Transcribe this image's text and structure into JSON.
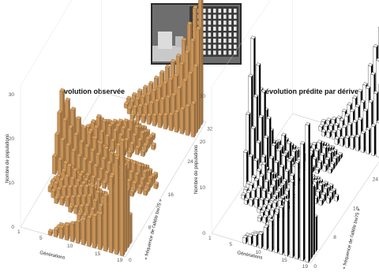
{
  "photo": {
    "description_icon": "laboratory-bottle-rack-photo"
  },
  "chart_data": [
    {
      "type": "bar3d",
      "title": "évolution observée",
      "ylabel": "Nombre de populations",
      "xlabel": "Générations",
      "zlabel": "« fréquence de l'allèle bw75 »",
      "color": "#d9a060",
      "y_ticks": [
        0,
        10,
        20,
        30
      ],
      "gen_ticks": [
        1,
        5,
        10,
        15,
        19
      ],
      "freq_ticks": [
        0,
        8,
        16,
        24,
        32
      ],
      "generations": 19,
      "freq_classes": 33,
      "rows_sample": [
        {
          "gen": 1,
          "values": {
            "16": 16
          }
        },
        {
          "gen": 5,
          "values": {
            "10": 6,
            "16": 9,
            "22": 6
          }
        },
        {
          "gen": 10,
          "values": {
            "0": 4,
            "8": 5,
            "16": 5,
            "24": 5,
            "32": 6
          }
        },
        {
          "gen": 15,
          "values": {
            "0": 8,
            "16": 4,
            "32": 14
          }
        },
        {
          "gen": 19,
          "values": {
            "0": 26,
            "32": 30
          }
        }
      ]
    },
    {
      "type": "bar3d",
      "title": "évolution prédite par dérive",
      "ylabel": "Nombre de populations",
      "xlabel": "Générations",
      "zlabel": "« fréquence de l'allèle bw75 »",
      "color": "#ffffff",
      "y_ticks": [
        0,
        10,
        20,
        30
      ],
      "gen_ticks": [
        1,
        5,
        10,
        15,
        19
      ],
      "freq_ticks": [
        0,
        8,
        16,
        24,
        32
      ],
      "generations": 19,
      "freq_classes": 33,
      "rows_sample": [
        {
          "gen": 1,
          "values": {
            "16": 30
          }
        },
        {
          "gen": 5,
          "values": {
            "12": 7,
            "16": 8,
            "20": 7
          }
        },
        {
          "gen": 10,
          "values": {
            "0": 3,
            "8": 4,
            "16": 4,
            "24": 4,
            "32": 3
          }
        },
        {
          "gen": 15,
          "values": {
            "0": 12,
            "16": 2,
            "32": 12
          }
        },
        {
          "gen": 19,
          "values": {
            "0": 30,
            "32": 30
          }
        }
      ]
    }
  ]
}
